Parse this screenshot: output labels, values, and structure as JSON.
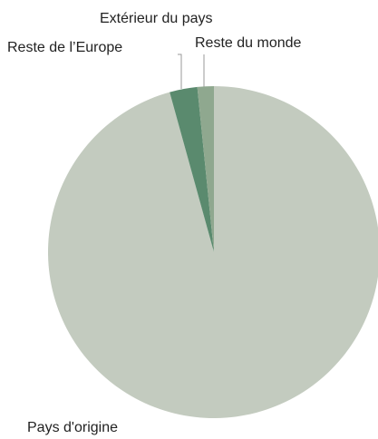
{
  "chart_data": {
    "type": "pie",
    "categories": [
      "Pays d'origine",
      "Reste de l’Europe",
      "Reste du monde",
      "Extérieur du pays"
    ],
    "values": [
      95.7,
      2.7,
      1.6,
      0
    ],
    "colors": [
      "#c3cbbf",
      "#5a8a6e",
      "#8fa88f",
      "#7a9a80"
    ]
  }
}
